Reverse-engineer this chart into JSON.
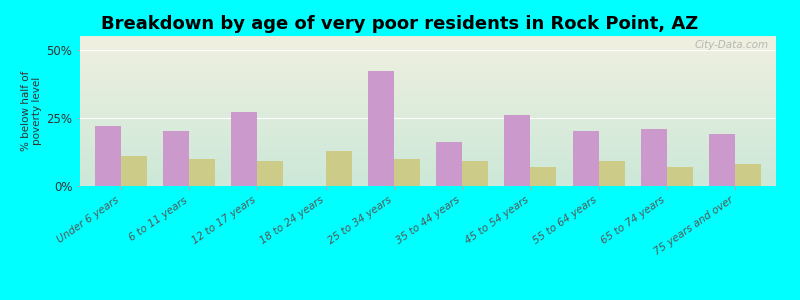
{
  "title": "Breakdown by age of very poor residents in Rock Point, AZ",
  "categories": [
    "Under 6 years",
    "6 to 11 years",
    "12 to 17 years",
    "18 to 24 years",
    "25 to 34 years",
    "35 to 44 years",
    "45 to 54 years",
    "55 to 64 years",
    "65 to 74 years",
    "75 years and over"
  ],
  "rock_point_values": [
    22,
    20,
    27,
    0,
    42,
    16,
    26,
    20,
    21,
    19
  ],
  "arizona_values": [
    11,
    10,
    9,
    13,
    10,
    9,
    7,
    9,
    7,
    8
  ],
  "rock_point_color": "#cc99cc",
  "arizona_color": "#cccc88",
  "background_color": "#00ffff",
  "plot_bg_top": "#f0f0e0",
  "plot_bg_bottom": "#cce8d8",
  "ylabel": "% below half of\npoverty level",
  "ylim": [
    0,
    55
  ],
  "yticks": [
    0,
    25,
    50
  ],
  "ytick_labels": [
    "0%",
    "25%",
    "50%"
  ],
  "bar_width": 0.38,
  "title_fontsize": 13,
  "watermark": "City-Data.com"
}
